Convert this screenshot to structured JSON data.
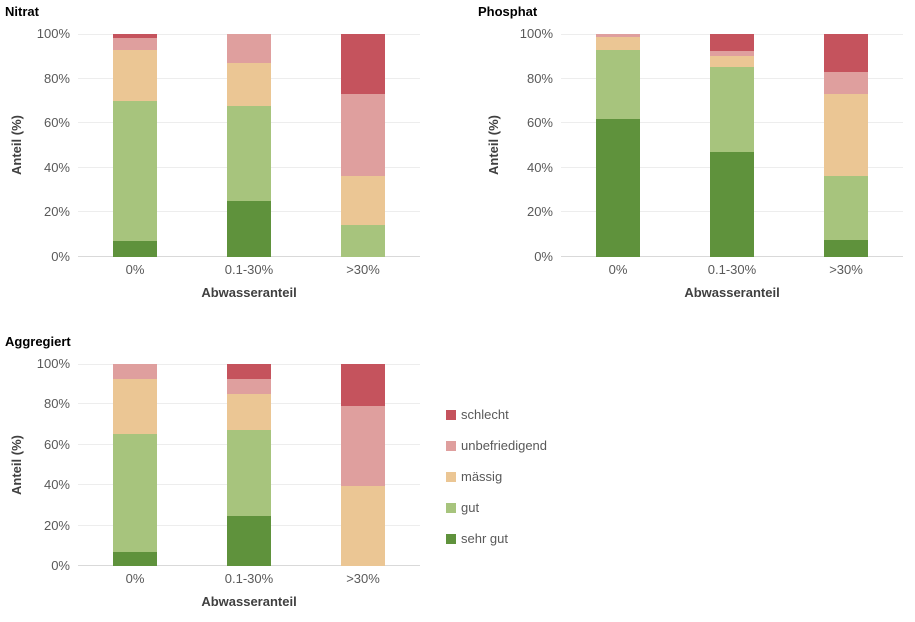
{
  "figure": {
    "background": "#ffffff",
    "tick_text_color": "#595959",
    "axis_title_color": "#404040",
    "gridline_color": "#ededed",
    "axis_line_color": "#d9d9d9"
  },
  "legend": {
    "items": [
      {
        "label": "schlecht",
        "color": "#C5535D"
      },
      {
        "label": "unbefriedigend",
        "color": "#DF9F9E"
      },
      {
        "label": "mässig",
        "color": "#EBC694"
      },
      {
        "label": "gut",
        "color": "#A7C47D"
      },
      {
        "label": "sehr gut",
        "color": "#5F923C"
      }
    ]
  },
  "chart_data": [
    {
      "type": "bar",
      "stacked": true,
      "title": "Nitrat",
      "xlabel": "Abwasseranteil",
      "ylabel": "Anteil (%)",
      "categories": [
        "0%",
        "0.1-30%",
        ">30%"
      ],
      "yticks": [
        "0%",
        "20%",
        "40%",
        "60%",
        "80%",
        "100%"
      ],
      "ylim": [
        0,
        100
      ],
      "grid": true,
      "series": [
        {
          "name": "sehr gut",
          "color": "#5F923C",
          "values": [
            7,
            25,
            0
          ]
        },
        {
          "name": "gut",
          "color": "#A7C47D",
          "values": [
            63,
            42.5,
            14.5
          ]
        },
        {
          "name": "mässig",
          "color": "#EBC694",
          "values": [
            23,
            19.5,
            22
          ]
        },
        {
          "name": "unbefriedigend",
          "color": "#DF9F9E",
          "values": [
            5,
            13,
            36.5
          ]
        },
        {
          "name": "schlecht",
          "color": "#C5535D",
          "values": [
            2,
            0,
            27
          ]
        }
      ]
    },
    {
      "type": "bar",
      "stacked": true,
      "title": "Phosphat",
      "xlabel": "Abwasseranteil",
      "ylabel": "Anteil (%)",
      "categories": [
        "0%",
        "0.1-30%",
        ">30%"
      ],
      "yticks": [
        "0%",
        "20%",
        "40%",
        "60%",
        "80%",
        "100%"
      ],
      "ylim": [
        0,
        100
      ],
      "grid": true,
      "series": [
        {
          "name": "sehr gut",
          "color": "#5F923C",
          "values": [
            62,
            47,
            7.5
          ]
        },
        {
          "name": "gut",
          "color": "#A7C47D",
          "values": [
            31,
            38,
            29
          ]
        },
        {
          "name": "mässig",
          "color": "#EBC694",
          "values": [
            5.5,
            5,
            36.5
          ]
        },
        {
          "name": "unbefriedigend",
          "color": "#DF9F9E",
          "values": [
            1.5,
            2.5,
            10
          ]
        },
        {
          "name": "schlecht",
          "color": "#C5535D",
          "values": [
            0,
            7.5,
            17
          ]
        }
      ]
    },
    {
      "type": "bar",
      "stacked": true,
      "title": "Aggregiert",
      "xlabel": "Abwasseranteil",
      "ylabel": "Anteil (%)",
      "categories": [
        "0%",
        "0.1-30%",
        ">30%"
      ],
      "yticks": [
        "0%",
        "20%",
        "40%",
        "60%",
        "80%",
        "100%"
      ],
      "ylim": [
        0,
        100
      ],
      "grid": true,
      "series": [
        {
          "name": "sehr gut",
          "color": "#5F923C",
          "values": [
            7,
            25,
            0
          ]
        },
        {
          "name": "gut",
          "color": "#A7C47D",
          "values": [
            58.5,
            42.5,
            0
          ]
        },
        {
          "name": "mässig",
          "color": "#EBC694",
          "values": [
            27,
            17.5,
            39.5
          ]
        },
        {
          "name": "unbefriedigend",
          "color": "#DF9F9E",
          "values": [
            7.5,
            7.5,
            39.5
          ]
        },
        {
          "name": "schlecht",
          "color": "#C5535D",
          "values": [
            0,
            7.5,
            21
          ]
        }
      ]
    }
  ]
}
